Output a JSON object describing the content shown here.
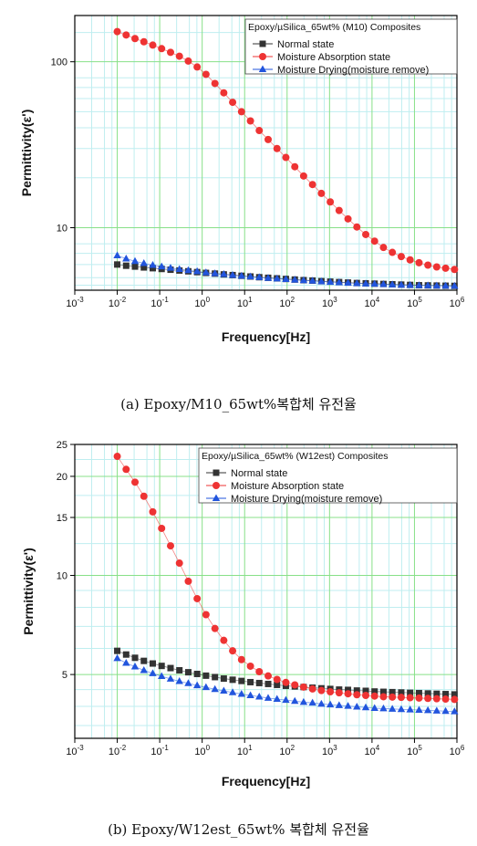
{
  "chart_data": [
    {
      "type": "scatter",
      "title": "Epoxy/µSilica_65wt% (M10) Composites",
      "caption": "(a) Epoxy/M10_65wt%복합체 유전율",
      "xlabel": "Frequency[Hz]",
      "ylabel": "Permittivity(ε')",
      "x_scale": "log",
      "y_scale": "log",
      "xlim": [
        0.001,
        1000000
      ],
      "ylim": [
        4.2,
        190
      ],
      "x_ticks": [
        {
          "base": "10",
          "exp": "-3"
        },
        {
          "base": "10",
          "exp": "-2"
        },
        {
          "base": "10",
          "exp": "-1"
        },
        {
          "base": "10",
          "exp": "0"
        },
        {
          "base": "10",
          "exp": "1"
        },
        {
          "base": "10",
          "exp": "2"
        },
        {
          "base": "10",
          "exp": "3"
        },
        {
          "base": "10",
          "exp": "4"
        },
        {
          "base": "10",
          "exp": "5"
        },
        {
          "base": "10",
          "exp": "6"
        }
      ],
      "y_ticks": [
        {
          "value": 10,
          "label": "10"
        },
        {
          "value": 100,
          "label": "100"
        }
      ],
      "legend_position": "top-right",
      "x": [
        0.01,
        0.0162,
        0.0262,
        0.0424,
        0.0686,
        0.111,
        0.18,
        0.291,
        0.471,
        0.762,
        1.23,
        2,
        3.23,
        5.22,
        8.45,
        13.7,
        22.1,
        35.8,
        57.9,
        93.6,
        152,
        245,
        397,
        642,
        1040,
        1680,
        2720,
        4400,
        7120,
        11500,
        18600,
        30100,
        48800,
        78900,
        128000,
        207000,
        334000,
        541000,
        876000
      ],
      "series": [
        {
          "name": "Normal state",
          "color": "#333333",
          "marker": "square",
          "values": [
            6.0,
            5.9,
            5.83,
            5.76,
            5.7,
            5.64,
            5.58,
            5.52,
            5.46,
            5.4,
            5.34,
            5.29,
            5.23,
            5.18,
            5.13,
            5.08,
            5.03,
            4.99,
            4.95,
            4.91,
            4.87,
            4.83,
            4.8,
            4.76,
            4.73,
            4.7,
            4.67,
            4.64,
            4.62,
            4.6,
            4.58,
            4.56,
            4.54,
            4.52,
            4.5,
            4.49,
            4.48,
            4.47,
            4.46
          ]
        },
        {
          "name": "Moisture Absorption state",
          "color": "#ee3333",
          "marker": "circle",
          "values": [
            152,
            145,
            138,
            132,
            126,
            120,
            114,
            108,
            101,
            93,
            84,
            74,
            65,
            57,
            50,
            44,
            38.5,
            34,
            30,
            26.5,
            23.3,
            20.5,
            18.2,
            16.1,
            14.3,
            12.7,
            11.3,
            10.1,
            9.1,
            8.3,
            7.6,
            7.1,
            6.7,
            6.4,
            6.15,
            5.95,
            5.8,
            5.7,
            5.6
          ]
        },
        {
          "name": "Moisture Drying(moisture remove)",
          "color": "#2255dd",
          "marker": "triangle",
          "values": [
            6.8,
            6.5,
            6.28,
            6.1,
            5.95,
            5.83,
            5.72,
            5.62,
            5.53,
            5.45,
            5.37,
            5.3,
            5.24,
            5.18,
            5.12,
            5.07,
            5.02,
            4.97,
            4.93,
            4.89,
            4.85,
            4.81,
            4.78,
            4.74,
            4.71,
            4.68,
            4.65,
            4.62,
            4.6,
            4.58,
            4.56,
            4.54,
            4.52,
            4.5,
            4.49,
            4.48,
            4.47,
            4.46,
            4.45
          ]
        }
      ]
    },
    {
      "type": "scatter",
      "title": "Epoxy/µSilica_65wt% (W12est) Composites",
      "caption": "(b) Epoxy/W12est_65wt% 복합체 유전율",
      "xlabel": "Frequency[Hz]",
      "ylabel": "Permittivity(ε')",
      "x_scale": "log",
      "y_scale": "log",
      "xlim": [
        0.001,
        1000000
      ],
      "ylim": [
        3.2,
        25
      ],
      "x_ticks": [
        {
          "base": "10",
          "exp": "-3"
        },
        {
          "base": "10",
          "exp": "-2"
        },
        {
          "base": "10",
          "exp": "-1"
        },
        {
          "base": "10",
          "exp": "0"
        },
        {
          "base": "10",
          "exp": "1"
        },
        {
          "base": "10",
          "exp": "2"
        },
        {
          "base": "10",
          "exp": "3"
        },
        {
          "base": "10",
          "exp": "4"
        },
        {
          "base": "10",
          "exp": "5"
        },
        {
          "base": "10",
          "exp": "6"
        }
      ],
      "y_ticks": [
        {
          "value": 5,
          "label": "5"
        },
        {
          "value": 10,
          "label": "10"
        },
        {
          "value": 15,
          "label": "15"
        },
        {
          "value": 20,
          "label": "20"
        },
        {
          "value": 25,
          "label": "25"
        }
      ],
      "legend_position": "top-right",
      "x": [
        0.01,
        0.0162,
        0.0262,
        0.0424,
        0.0686,
        0.111,
        0.18,
        0.291,
        0.471,
        0.762,
        1.23,
        2,
        3.23,
        5.22,
        8.45,
        13.7,
        22.1,
        35.8,
        57.9,
        93.6,
        152,
        245,
        397,
        642,
        1040,
        1680,
        2720,
        4400,
        7120,
        11500,
        18600,
        30100,
        48800,
        78900,
        128000,
        207000,
        334000,
        541000,
        876000
      ],
      "series": [
        {
          "name": "Normal state",
          "color": "#333333",
          "marker": "square",
          "values": [
            5.9,
            5.75,
            5.62,
            5.5,
            5.4,
            5.31,
            5.23,
            5.15,
            5.08,
            5.02,
            4.96,
            4.91,
            4.86,
            4.82,
            4.78,
            4.74,
            4.71,
            4.68,
            4.65,
            4.62,
            4.6,
            4.58,
            4.56,
            4.54,
            4.52,
            4.5,
            4.49,
            4.47,
            4.46,
            4.44,
            4.43,
            4.42,
            4.41,
            4.4,
            4.39,
            4.38,
            4.37,
            4.36,
            4.35
          ]
        },
        {
          "name": "Moisture Absorption state",
          "color": "#ee3333",
          "marker": "circle",
          "values": [
            23.0,
            21.0,
            19.2,
            17.4,
            15.6,
            13.9,
            12.3,
            10.9,
            9.6,
            8.5,
            7.6,
            6.9,
            6.35,
            5.9,
            5.55,
            5.3,
            5.1,
            4.95,
            4.83,
            4.73,
            4.65,
            4.58,
            4.52,
            4.47,
            4.43,
            4.4,
            4.37,
            4.34,
            4.32,
            4.3,
            4.28,
            4.27,
            4.26,
            4.25,
            4.24,
            4.23,
            4.22,
            4.21,
            4.2
          ]
        },
        {
          "name": "Moisture Drying(moisture remove)",
          "color": "#2255dd",
          "marker": "triangle",
          "values": [
            5.6,
            5.42,
            5.28,
            5.15,
            5.04,
            4.94,
            4.85,
            4.77,
            4.7,
            4.63,
            4.57,
            4.51,
            4.46,
            4.41,
            4.36,
            4.32,
            4.28,
            4.24,
            4.21,
            4.18,
            4.15,
            4.12,
            4.1,
            4.07,
            4.05,
            4.03,
            4.01,
            3.99,
            3.97,
            3.95,
            3.94,
            3.93,
            3.92,
            3.91,
            3.9,
            3.89,
            3.88,
            3.87,
            3.86
          ]
        }
      ]
    }
  ]
}
